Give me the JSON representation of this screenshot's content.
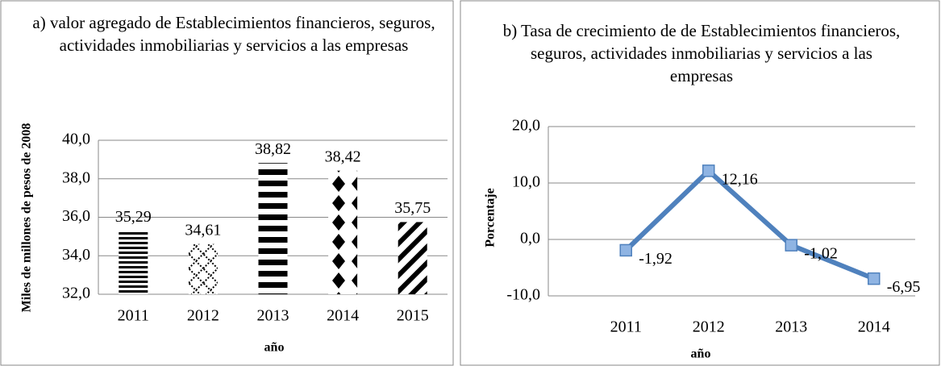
{
  "chart_data": [
    {
      "type": "bar",
      "title": "a) valor agregado de Establecimientos financieros, seguros, actividades inmobiliarias y servicios a las empresas",
      "y_label": "Miles de millones de pesos de 2008",
      "x_label": "año",
      "categories": [
        "2011",
        "2012",
        "2013",
        "2014",
        "2015"
      ],
      "values": [
        35.29,
        34.61,
        38.82,
        38.42,
        35.75
      ],
      "value_labels": [
        "35,29",
        "34,61",
        "38,82",
        "38,42",
        "35,75"
      ],
      "color": "#000000",
      "ylim": [
        32,
        40
      ],
      "yticks": [
        {
          "value": 32,
          "label": "32,0"
        },
        {
          "value": 34,
          "label": "34,0"
        },
        {
          "value": 36,
          "label": "36,0"
        },
        {
          "value": 38,
          "label": "38,0"
        },
        {
          "value": 40,
          "label": "40,0"
        }
      ],
      "grid": true
    },
    {
      "type": "line",
      "title": "b) Tasa de crecimiento de de Establecimientos financieros, seguros, actividades inmobiliarias y servicios a las empresas",
      "y_label": "Porcentaje",
      "x_label": "año",
      "categories": [
        "2011",
        "2012",
        "2013",
        "2014"
      ],
      "values": [
        -1.92,
        12.16,
        -1.02,
        -6.95
      ],
      "value_labels": [
        "-1,92",
        "12,16",
        "-1,02",
        "-6,95"
      ],
      "color": "#4f81bd",
      "ylim": [
        -10,
        20
      ],
      "yticks": [
        {
          "value": -10,
          "label": "-10,0"
        },
        {
          "value": 0,
          "label": "0,0"
        },
        {
          "value": 10,
          "label": "10,0"
        },
        {
          "value": 20,
          "label": "20,0"
        }
      ],
      "grid": true
    }
  ]
}
